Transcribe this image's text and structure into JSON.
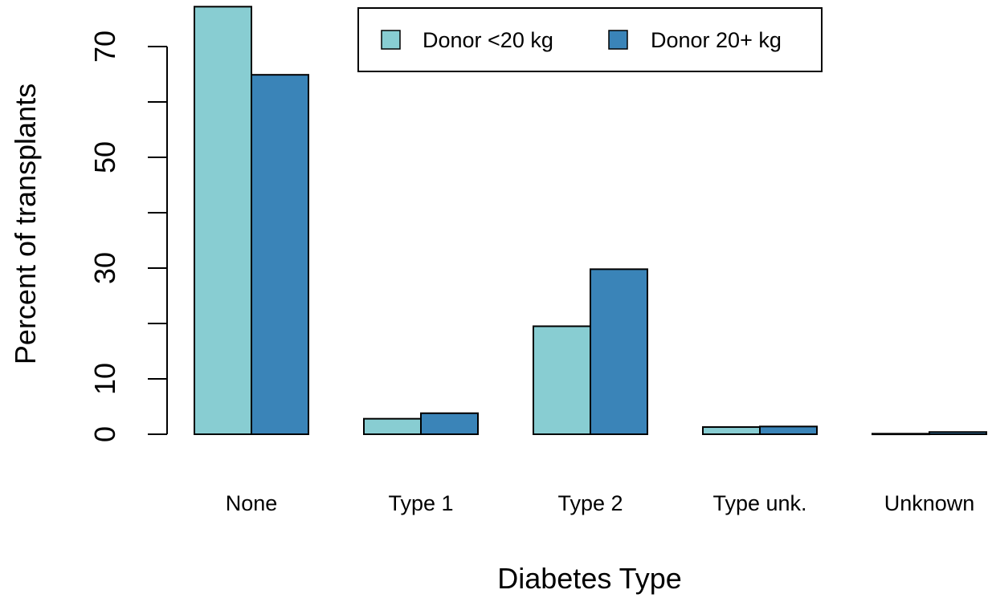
{
  "chart_data": {
    "type": "bar",
    "orientation": "vertical",
    "grouped": true,
    "categories": [
      "None",
      "Type 1",
      "Type 2",
      "Type unk.",
      "Unknown"
    ],
    "series": [
      {
        "name": "Donor <20 kg",
        "color": "#88CDD2",
        "values": [
          77.2,
          2.8,
          19.5,
          1.3,
          0.1
        ]
      },
      {
        "name": "Donor 20+ kg",
        "color": "#3A84B8",
        "values": [
          64.9,
          3.8,
          29.8,
          1.4,
          0.4
        ]
      }
    ],
    "xlabel": "Diabetes Type",
    "ylabel": "Percent of transplants",
    "ylim": [
      0,
      77.2
    ],
    "yticks": [
      0,
      10,
      30,
      50,
      70
    ],
    "yticks_unlabeled": [
      20,
      40,
      60
    ],
    "grid": false,
    "legend_position": "top-center",
    "bar_border_color": "#000000"
  }
}
